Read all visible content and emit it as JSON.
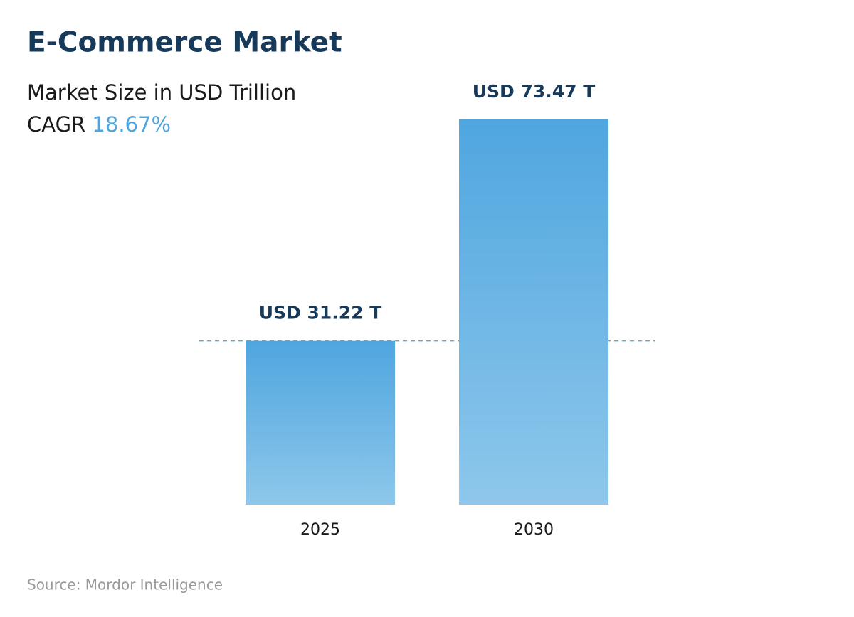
{
  "chart_data": {
    "type": "bar",
    "title": "E-Commerce Market",
    "subtitle": "Market Size in USD Trillion",
    "cagr_label": "CAGR",
    "cagr_value": "18.67%",
    "categories": [
      "2025",
      "2030"
    ],
    "values": [
      31.22,
      73.47
    ],
    "value_labels": [
      "USD 31.22 T",
      "USD 73.47 T"
    ],
    "gradient": [
      "#4fa6df",
      "#8ec7eb"
    ],
    "reference_line": true,
    "source": "Source: Mordor Intelligence"
  }
}
